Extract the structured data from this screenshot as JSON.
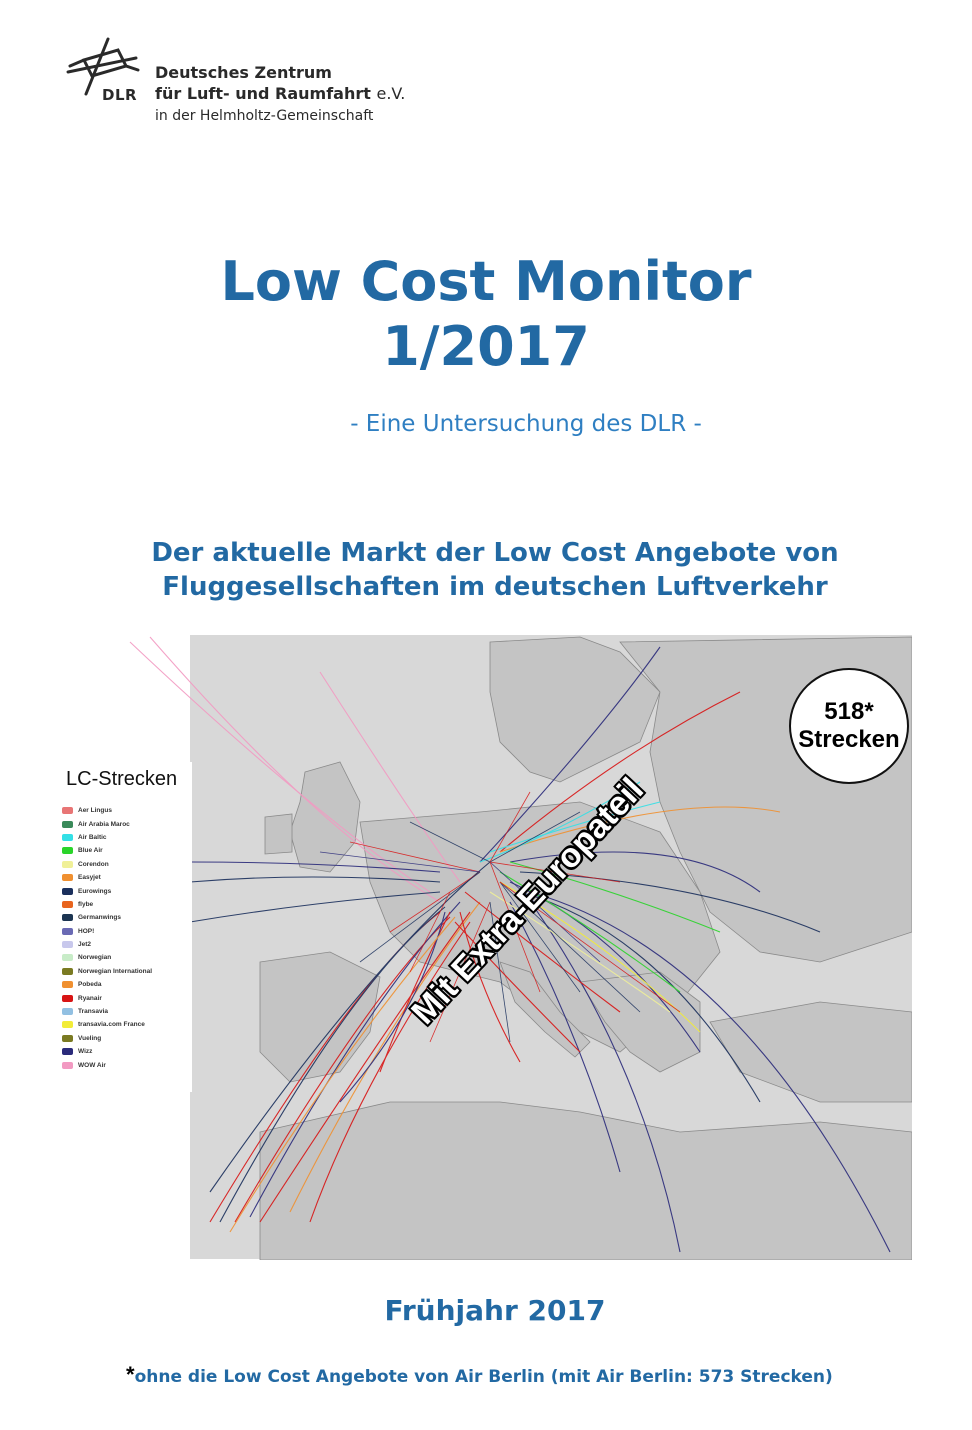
{
  "logo": {
    "abbr": "DLR",
    "line1": "Deutsches Zentrum",
    "line2": "für Luft- und Raumfahrt",
    "line2_suffix": "e.V.",
    "line3": "in der Helmholtz-Gemeinschaft"
  },
  "title": {
    "line1": "Low Cost Monitor",
    "line2": "1/2017"
  },
  "subtitle": "- Eine Untersuchung des DLR -",
  "heading": {
    "line1": "Der aktuelle Markt der Low Cost Angebote von",
    "line2": "Fluggesellschaften im deutschen Luftverkehr"
  },
  "map": {
    "legend_title": "LC-Strecken",
    "legend": [
      {
        "label": "Aer Lingus",
        "color": "#e87575"
      },
      {
        "label": "Air Arabia Maroc",
        "color": "#3a8a5a"
      },
      {
        "label": "Air Baltic",
        "color": "#33e0e6"
      },
      {
        "label": "Blue Air",
        "color": "#2ad42a"
      },
      {
        "label": "Corendon",
        "color": "#f0f098"
      },
      {
        "label": "Easyjet",
        "color": "#f09030"
      },
      {
        "label": "Eurowings",
        "color": "#1a2f5c"
      },
      {
        "label": "flybe",
        "color": "#e8641e"
      },
      {
        "label": "Germanwings",
        "color": "#1c3552"
      },
      {
        "label": "HOP!",
        "color": "#6a6ab4"
      },
      {
        "label": "Jet2",
        "color": "#c8c8ec"
      },
      {
        "label": "Norwegian",
        "color": "#c8ecc8"
      },
      {
        "label": "Norwegian International",
        "color": "#7a7a22"
      },
      {
        "label": "Pobeda",
        "color": "#f09030"
      },
      {
        "label": "Ryanair",
        "color": "#d81414"
      },
      {
        "label": "Transavia",
        "color": "#92c0e2"
      },
      {
        "label": "transavia.com France",
        "color": "#f2ec38"
      },
      {
        "label": "Vueling",
        "color": "#7a7a22"
      },
      {
        "label": "Wizz",
        "color": "#2a2a7a"
      },
      {
        "label": "WOW Air",
        "color": "#f29ac2"
      }
    ],
    "badge_number": "518*",
    "badge_label": "Strecken",
    "overlay_text": "Mit Extra-Europateil"
  },
  "season": "Frühjahr 2017",
  "footnote": {
    "marker": "*",
    "text": "ohne die Low Cost Angebote von Air Berlin (mit Air Berlin: 573 Strecken)"
  }
}
